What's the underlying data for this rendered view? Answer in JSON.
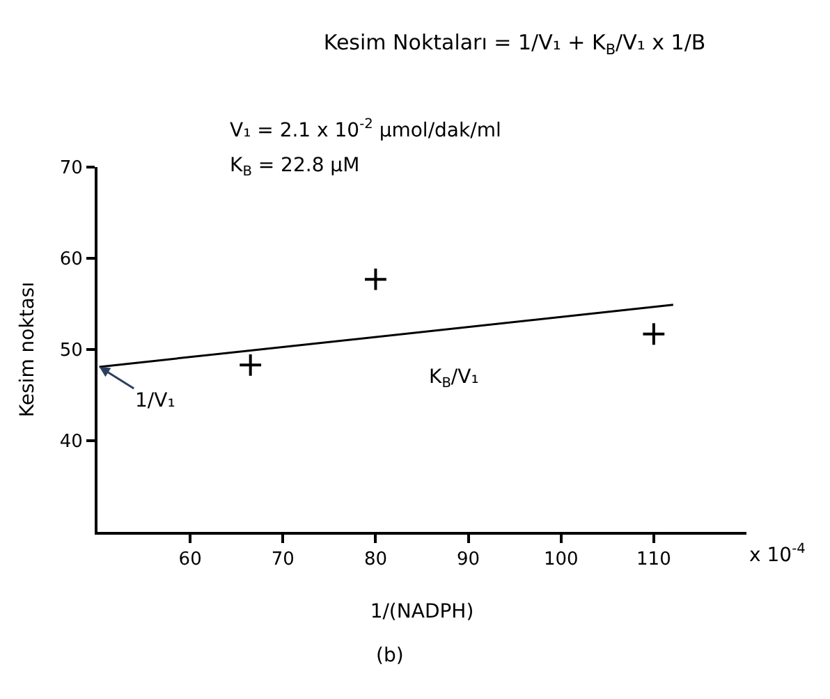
{
  "chart_data": {
    "type": "scatter",
    "title": "Kesim Noktaları = 1/V₁ + K$_{B}$/V₁ x 1/B",
    "subtitle": "V₁ = 2.1 x 10$^{-2}$ μmol/dak/ml",
    "xlabel": "1/(NADPH)",
    "ylabel": "Kesim noktası",
    "series": [
      {
        "color": "#000000",
        "marker": "cross",
        "x": [
          66.5,
          80,
          110
        ],
        "values": [
          48.3,
          57.7,
          51.7
        ]
      },
      {
        "type": "line",
        "color": "#000000",
        "line_style": "solid",
        "x": [
          50.2,
          112.1
        ],
        "values": [
          48.1,
          54.9
        ]
      }
    ],
    "annotations": [
      {
        "text": "1/V₁",
        "x": 50.2,
        "y": 48.1
      },
      "K$_{B}$ = 22.8 μM",
      "K$_{B}$/V₁",
      "x 10$^{-4}$",
      "(b)"
    ],
    "xlim": [
      50,
      120
    ],
    "xticks": [
      60,
      70,
      80,
      90,
      100,
      110
    ],
    "ylim": [
      30,
      70
    ],
    "yticks": [
      40,
      50,
      60,
      70
    ]
  }
}
